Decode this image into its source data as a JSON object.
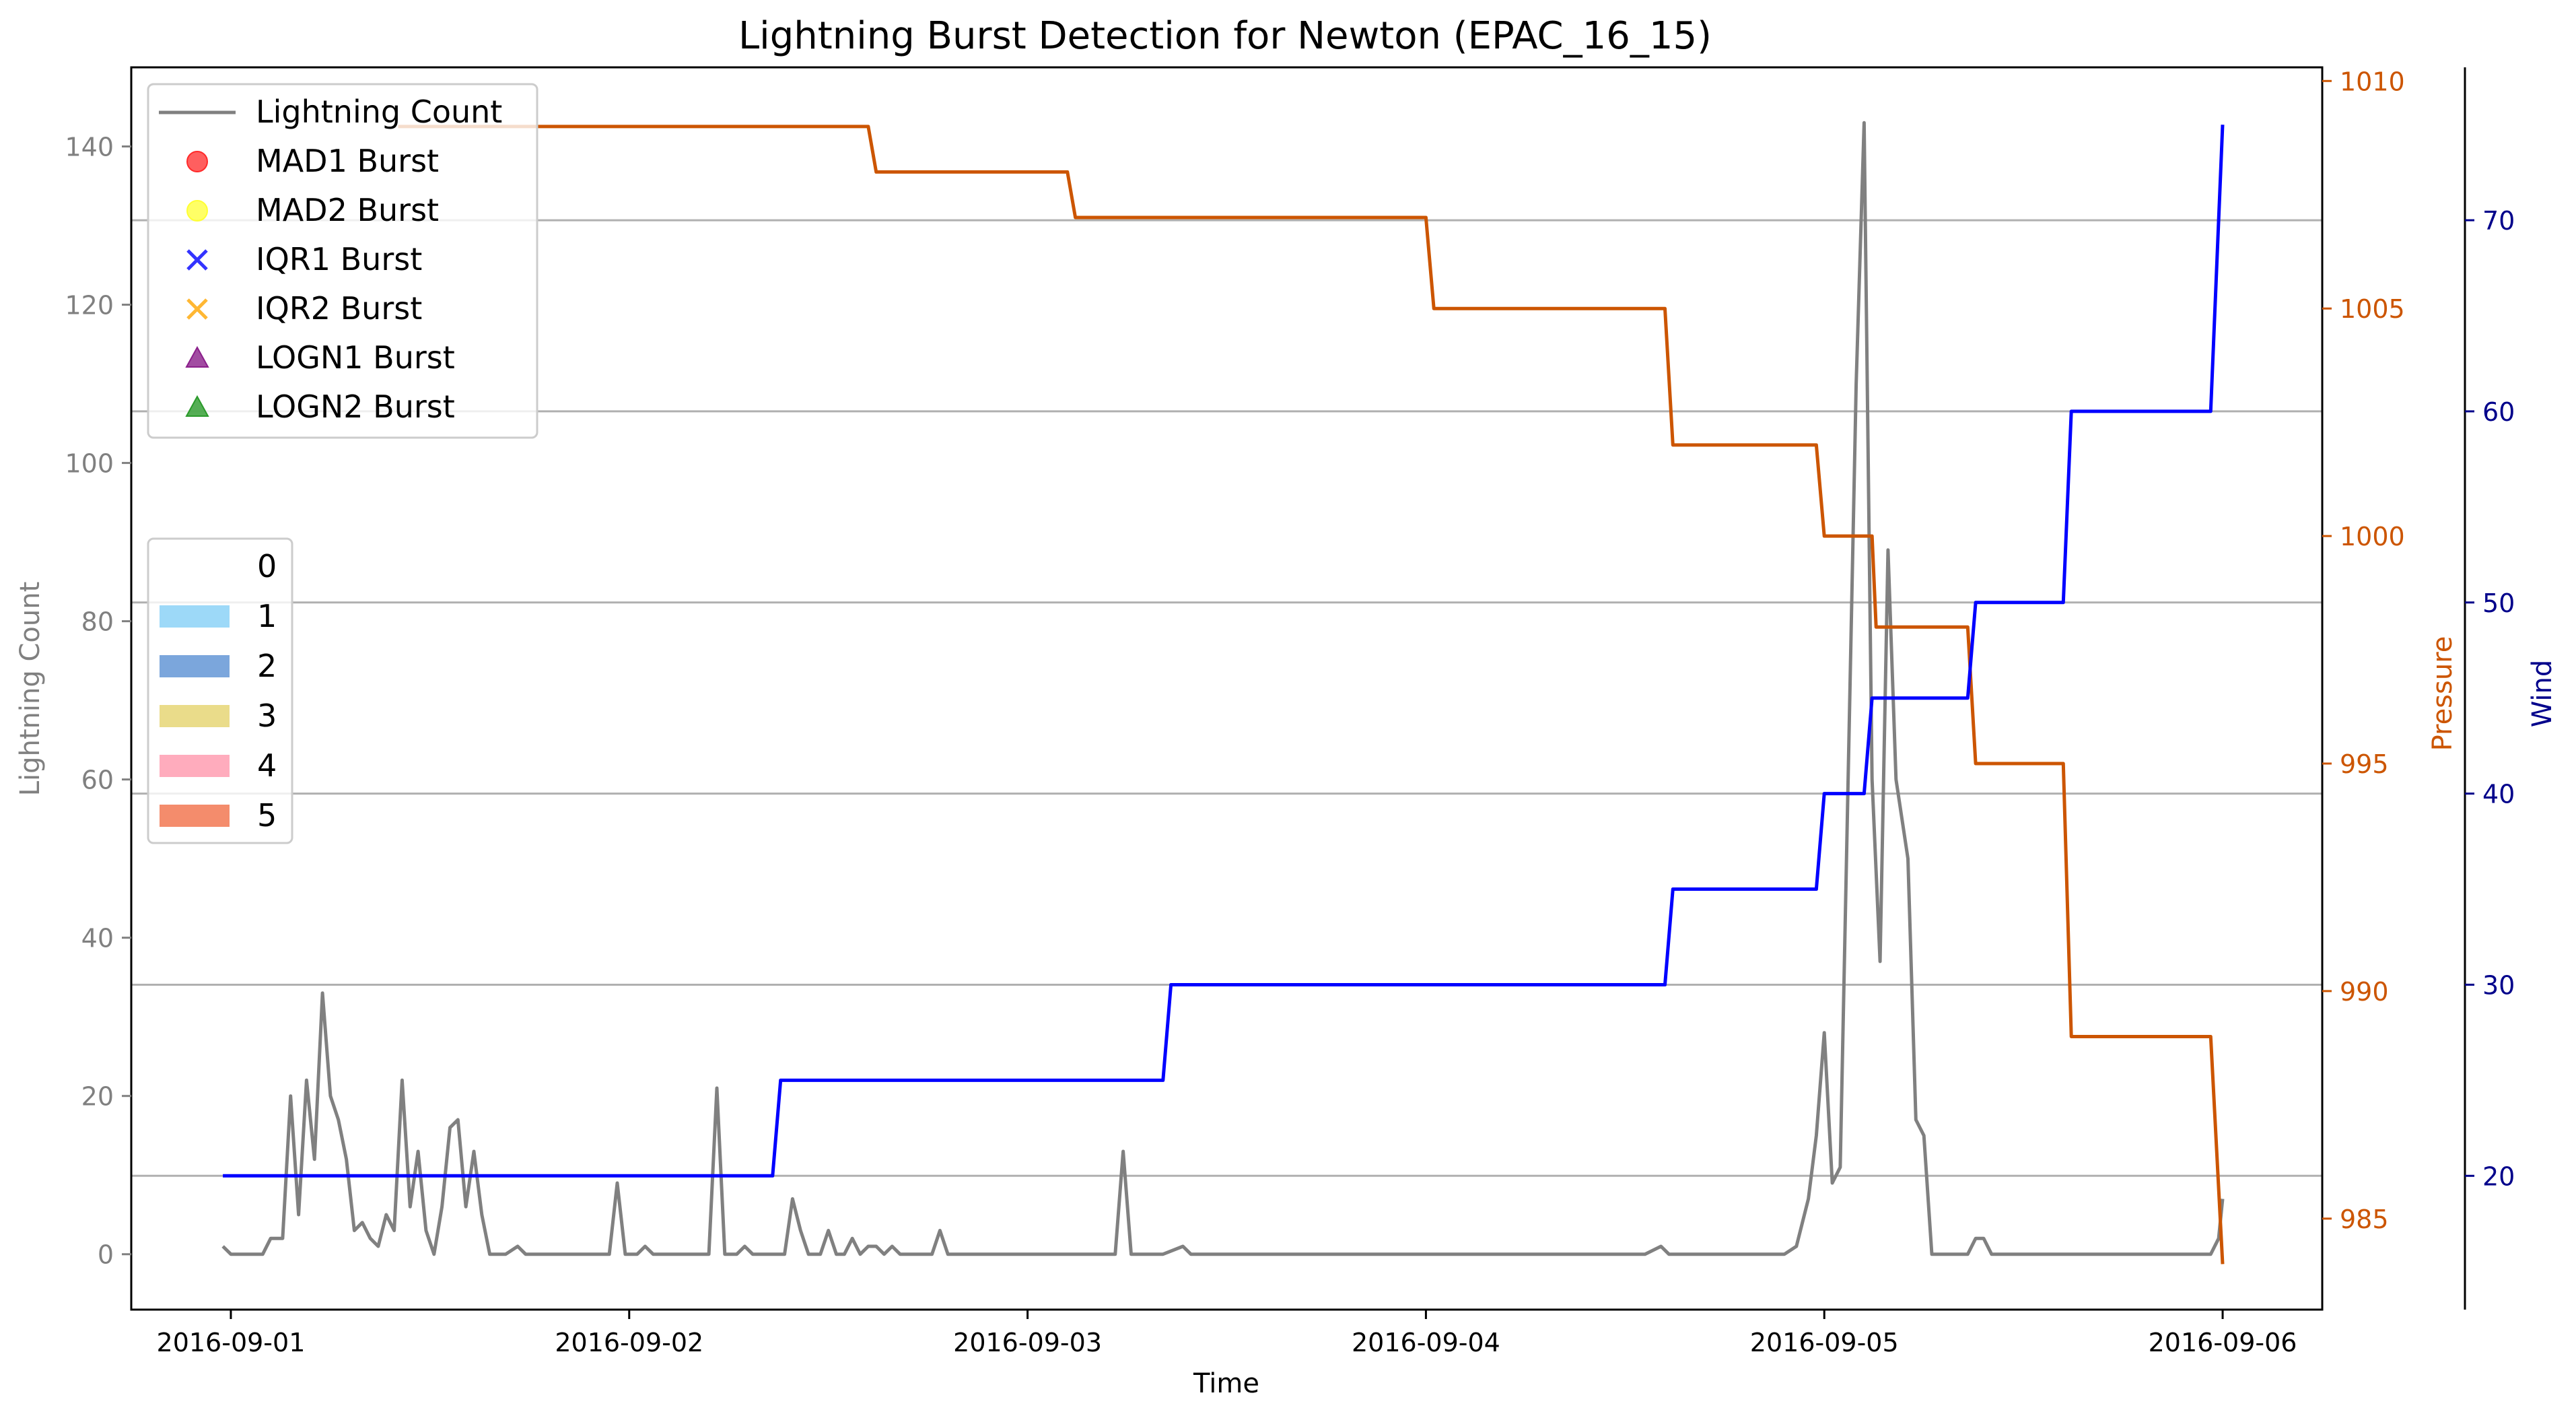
{
  "chart_data": {
    "type": "line",
    "title": "Lightning Burst Detection for Newton (EPAC_16_15)",
    "xlabel": "Time",
    "x_ticks": [
      {
        "label": "2016-09-01",
        "t": 0.0
      },
      {
        "label": "2016-09-02",
        "t": 1.0
      },
      {
        "label": "2016-09-03",
        "t": 2.0
      },
      {
        "label": "2016-09-04",
        "t": 3.0
      },
      {
        "label": "2016-09-05",
        "t": 4.0
      },
      {
        "label": "2016-09-06",
        "t": 5.0
      }
    ],
    "xlim": [
      -0.25,
      5.25
    ],
    "axes": {
      "left": {
        "label": "Lightning Count",
        "ylim": [
          -7,
          150
        ],
        "ticks": [
          0,
          20,
          40,
          60,
          80,
          100,
          120,
          140
        ],
        "color": "#808080"
      },
      "pressure": {
        "label": "Pressure",
        "ylim": [
          983,
          1010.3
        ],
        "ticks": [
          985,
          990,
          995,
          1000,
          1005,
          1010
        ],
        "color": "#cc5500"
      },
      "wind": {
        "label": "Wind",
        "ylim": [
          13,
          78
        ],
        "ticks": [
          20,
          30,
          40,
          50,
          60,
          70
        ],
        "color": "#00008b"
      }
    },
    "grid_lines_wind": [
      20,
      30,
      40,
      50,
      60,
      70
    ],
    "series": [
      {
        "name": "Lightning Count",
        "axis": "left",
        "color": "#808080",
        "points": [
          [
            -0.02,
            1
          ],
          [
            0,
            0
          ],
          [
            0.04,
            0
          ],
          [
            0.08,
            0
          ],
          [
            0.1,
            2
          ],
          [
            0.13,
            2
          ],
          [
            0.15,
            20
          ],
          [
            0.17,
            5
          ],
          [
            0.19,
            22
          ],
          [
            0.21,
            12
          ],
          [
            0.23,
            33
          ],
          [
            0.25,
            20
          ],
          [
            0.27,
            17
          ],
          [
            0.29,
            12
          ],
          [
            0.31,
            3
          ],
          [
            0.33,
            4
          ],
          [
            0.35,
            2
          ],
          [
            0.37,
            1
          ],
          [
            0.39,
            5
          ],
          [
            0.41,
            3
          ],
          [
            0.43,
            22
          ],
          [
            0.45,
            6
          ],
          [
            0.47,
            13
          ],
          [
            0.49,
            3
          ],
          [
            0.51,
            0
          ],
          [
            0.53,
            6
          ],
          [
            0.55,
            16
          ],
          [
            0.57,
            17
          ],
          [
            0.59,
            6
          ],
          [
            0.61,
            13
          ],
          [
            0.63,
            5
          ],
          [
            0.65,
            0
          ],
          [
            0.69,
            0
          ],
          [
            0.72,
            1
          ],
          [
            0.74,
            0
          ],
          [
            0.85,
            0
          ],
          [
            0.95,
            0
          ],
          [
            0.97,
            9
          ],
          [
            0.99,
            0
          ],
          [
            1.02,
            0
          ],
          [
            1.04,
            1
          ],
          [
            1.06,
            0
          ],
          [
            1.16,
            0
          ],
          [
            1.2,
            0
          ],
          [
            1.22,
            21
          ],
          [
            1.24,
            0
          ],
          [
            1.27,
            0
          ],
          [
            1.29,
            1
          ],
          [
            1.31,
            0
          ],
          [
            1.37,
            0
          ],
          [
            1.39,
            0
          ],
          [
            1.41,
            7
          ],
          [
            1.43,
            3
          ],
          [
            1.45,
            0
          ],
          [
            1.48,
            0
          ],
          [
            1.5,
            3
          ],
          [
            1.52,
            0
          ],
          [
            1.54,
            0
          ],
          [
            1.56,
            2
          ],
          [
            1.58,
            0
          ],
          [
            1.6,
            1
          ],
          [
            1.62,
            1
          ],
          [
            1.64,
            0
          ],
          [
            1.66,
            1
          ],
          [
            1.68,
            0
          ],
          [
            1.76,
            0
          ],
          [
            1.78,
            3
          ],
          [
            1.8,
            0
          ],
          [
            2.0,
            0
          ],
          [
            2.2,
            0
          ],
          [
            2.22,
            0
          ],
          [
            2.24,
            13
          ],
          [
            2.26,
            0
          ],
          [
            2.34,
            0
          ],
          [
            2.39,
            1
          ],
          [
            2.41,
            0
          ],
          [
            2.6,
            0
          ],
          [
            3.0,
            0
          ],
          [
            3.4,
            0
          ],
          [
            3.55,
            0
          ],
          [
            3.59,
            1
          ],
          [
            3.61,
            0
          ],
          [
            3.7,
            0
          ],
          [
            3.8,
            0
          ],
          [
            3.9,
            0
          ],
          [
            3.93,
            1
          ],
          [
            3.96,
            7
          ],
          [
            3.98,
            15
          ],
          [
            4.0,
            28
          ],
          [
            4.02,
            9
          ],
          [
            4.04,
            11
          ],
          [
            4.08,
            110
          ],
          [
            4.1,
            143
          ],
          [
            4.12,
            60
          ],
          [
            4.14,
            37
          ],
          [
            4.16,
            89
          ],
          [
            4.18,
            60
          ],
          [
            4.21,
            50
          ],
          [
            4.23,
            17
          ],
          [
            4.25,
            15
          ],
          [
            4.27,
            0
          ],
          [
            4.3,
            0
          ],
          [
            4.32,
            0
          ],
          [
            4.34,
            0
          ],
          [
            4.36,
            0
          ],
          [
            4.38,
            2
          ],
          [
            4.4,
            2
          ],
          [
            4.42,
            0
          ],
          [
            4.6,
            0
          ],
          [
            4.8,
            0
          ],
          [
            4.97,
            0
          ],
          [
            4.99,
            2
          ],
          [
            5.0,
            7
          ]
        ]
      },
      {
        "name": "Pressure",
        "axis": "pressure",
        "color": "#cc5500",
        "points": [
          [
            0.42,
            1009
          ],
          [
            0.6,
            1009
          ],
          [
            0.8,
            1009
          ],
          [
            1.0,
            1009
          ],
          [
            1.2,
            1009
          ],
          [
            1.4,
            1009
          ],
          [
            1.6,
            1009
          ],
          [
            1.6,
            1009
          ],
          [
            1.62,
            1008
          ],
          [
            2.1,
            1008
          ],
          [
            2.12,
            1007
          ],
          [
            3.0,
            1007
          ],
          [
            3.0,
            1007
          ],
          [
            3.02,
            1005
          ],
          [
            3.6,
            1005
          ],
          [
            3.62,
            1002
          ],
          [
            3.98,
            1002
          ],
          [
            4.0,
            1000
          ],
          [
            4.12,
            1000
          ],
          [
            4.13,
            998
          ],
          [
            4.36,
            998
          ],
          [
            4.38,
            995
          ],
          [
            4.6,
            995
          ],
          [
            4.62,
            989
          ],
          [
            4.97,
            989
          ],
          [
            5.0,
            984
          ]
        ]
      },
      {
        "name": "Wind",
        "axis": "wind",
        "color": "#0000ff",
        "points": [
          [
            -0.02,
            20
          ],
          [
            0.36,
            20
          ],
          [
            1.0,
            20
          ],
          [
            1.36,
            20
          ],
          [
            1.38,
            25
          ],
          [
            2.34,
            25
          ],
          [
            2.36,
            30
          ],
          [
            3.6,
            30
          ],
          [
            3.62,
            35
          ],
          [
            3.98,
            35
          ],
          [
            4.0,
            40
          ],
          [
            4.1,
            40
          ],
          [
            4.12,
            45
          ],
          [
            4.36,
            45
          ],
          [
            4.38,
            50
          ],
          [
            4.6,
            50
          ],
          [
            4.62,
            60
          ],
          [
            4.97,
            60
          ],
          [
            5.0,
            75
          ]
        ]
      }
    ],
    "legend_markers": {
      "placement": "top-left",
      "entries": [
        {
          "label": "Lightning Count",
          "kind": "line",
          "color": "#808080"
        },
        {
          "label": "MAD1 Burst",
          "kind": "circle",
          "color": "#ff2a2a"
        },
        {
          "label": "MAD2 Burst",
          "kind": "circle",
          "color": "#ffff33"
        },
        {
          "label": "IQR1 Burst",
          "kind": "x",
          "color": "#3333ff"
        },
        {
          "label": "IQR2 Burst",
          "kind": "x",
          "color": "#ffb733"
        },
        {
          "label": "LOGN1 Burst",
          "kind": "triangle",
          "color": "#8b1f8b"
        },
        {
          "label": "LOGN2 Burst",
          "kind": "triangle",
          "color": "#2a9a2a"
        }
      ]
    },
    "legend_categories": {
      "placement": "center-left",
      "entries": [
        {
          "label": "0",
          "color": "#ffffff"
        },
        {
          "label": "1",
          "color": "#9dd9f8"
        },
        {
          "label": "2",
          "color": "#7ba6dc"
        },
        {
          "label": "3",
          "color": "#eadc8a"
        },
        {
          "label": "4",
          "color": "#ffacbd"
        },
        {
          "label": "5",
          "color": "#f48c6c"
        }
      ]
    }
  }
}
